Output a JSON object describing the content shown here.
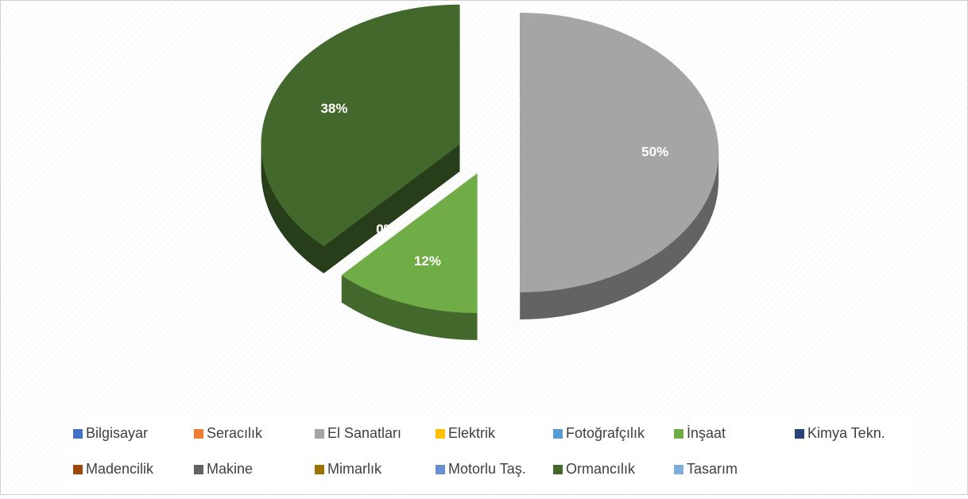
{
  "chart_data": {
    "type": "pie",
    "categories": [
      "Bilgisayar",
      "Seracılık",
      "El Sanatları",
      "Elektrik",
      "Fotoğrafçılık",
      "İnşaat",
      "Kimya Tekn.",
      "Madencilik",
      "Makine",
      "Mimarlık",
      "Motorlu Taş.",
      "Ormancılık",
      "Tasarım"
    ],
    "values": [
      0,
      0,
      50,
      0,
      0,
      12,
      0,
      0,
      0,
      0,
      0,
      38,
      0
    ],
    "value_labels": [
      "0%",
      "0%",
      "50%",
      "0%",
      "0%",
      "12%",
      "0%",
      "0%",
      "0%",
      "0%",
      "0%",
      "38%",
      "0%"
    ],
    "colors": [
      "#4472c4",
      "#ed7d31",
      "#a5a5a5",
      "#ffc000",
      "#5b9bd5",
      "#70ad47",
      "#264478",
      "#9e480e",
      "#636363",
      "#997300",
      "#698ed0",
      "#43682b",
      "#7caedd"
    ],
    "legend": "bottom"
  }
}
